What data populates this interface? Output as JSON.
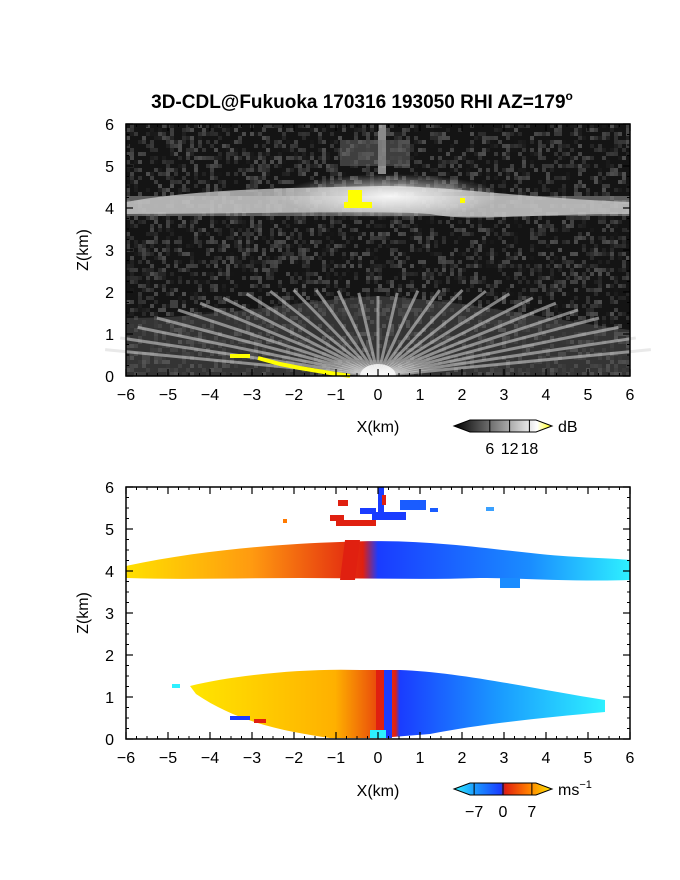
{
  "title": "3D-CDL@Fukuoka 170316 193050 RHI AZ=179",
  "title_sup": "o",
  "colors": {
    "background": "#ffffff",
    "intensity_panel_bg": "#141414",
    "marker_yellow": "#ffff00",
    "negative_blue": "#1a3cff",
    "negative_cyan": "#2ef0ff",
    "positive_red": "#e02010",
    "positive_yellow": "#ffd800"
  },
  "chart_data": [
    {
      "type": "heatmap",
      "name": "backscatter-intensity",
      "xlabel": "X(km)",
      "ylabel": "Z(km)",
      "xlim": [
        -6,
        6
      ],
      "ylim": [
        0,
        6
      ],
      "xticks": [
        -6,
        -5,
        -4,
        -3,
        -2,
        -1,
        0,
        1,
        2,
        3,
        4,
        5,
        6
      ],
      "yticks": [
        0,
        1,
        2,
        3,
        4,
        5,
        6
      ],
      "colorbar": {
        "unit": "dB",
        "ticks": [
          6,
          12,
          18
        ],
        "range": [
          0,
          20
        ]
      },
      "features": [
        {
          "label": "cloud layer",
          "x": [
            -6,
            6
          ],
          "z_center": 4.0,
          "z_half_width": 0.3
        },
        {
          "label": "boundary layer",
          "x": [
            -6,
            6
          ],
          "z_top": 1.5
        }
      ]
    },
    {
      "type": "heatmap",
      "name": "doppler-velocity",
      "xlabel": "X(km)",
      "ylabel": "Z(km)",
      "xlim": [
        -6,
        6
      ],
      "ylim": [
        0,
        6
      ],
      "xticks": [
        -6,
        -5,
        -4,
        -3,
        -2,
        -1,
        0,
        1,
        2,
        3,
        4,
        5,
        6
      ],
      "yticks": [
        0,
        1,
        2,
        3,
        4,
        5,
        6
      ],
      "colorbar": {
        "unit": "ms",
        "unit_sup": "−1",
        "ticks": [
          -7,
          0,
          7
        ],
        "range": [
          -8,
          8
        ]
      },
      "features": [
        {
          "label": "cloud layer",
          "x": [
            -6,
            6
          ],
          "z_center": 4.2,
          "z_half_width": 0.35
        },
        {
          "label": "boundary layer",
          "x": [
            -4.5,
            5.5
          ],
          "z_top": 1.5
        }
      ]
    }
  ]
}
